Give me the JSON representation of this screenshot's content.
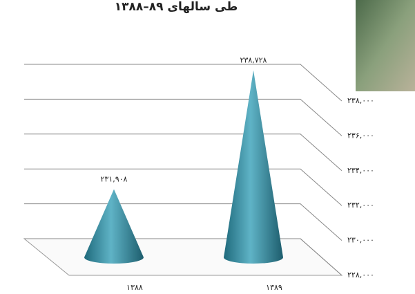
{
  "chart_data": {
    "type": "cone",
    "title": "طی سالهای ۸۹–۱۳۸۸",
    "categories": [
      "۱۳۸۸",
      "۱۳۸۹"
    ],
    "values": [
      231908,
      238728
    ],
    "value_labels": [
      "۲۳۱,۹۰۸",
      "۲۳۸,۷۲۸"
    ],
    "color": "#3a93a8",
    "ylim": [
      228000,
      238000
    ],
    "yticks": [
      {
        "value": 228000,
        "label": "۲۲۸,۰۰۰"
      },
      {
        "value": 230000,
        "label": "۲۳۰,۰۰۰"
      },
      {
        "value": 232000,
        "label": "۲۳۲,۰۰۰"
      },
      {
        "value": 234000,
        "label": "۲۳۴,۰۰۰"
      },
      {
        "value": 236000,
        "label": "۲۳۶,۰۰۰"
      },
      {
        "value": 238000,
        "label": "۲۳۸,۰۰۰"
      }
    ],
    "grid": true
  }
}
